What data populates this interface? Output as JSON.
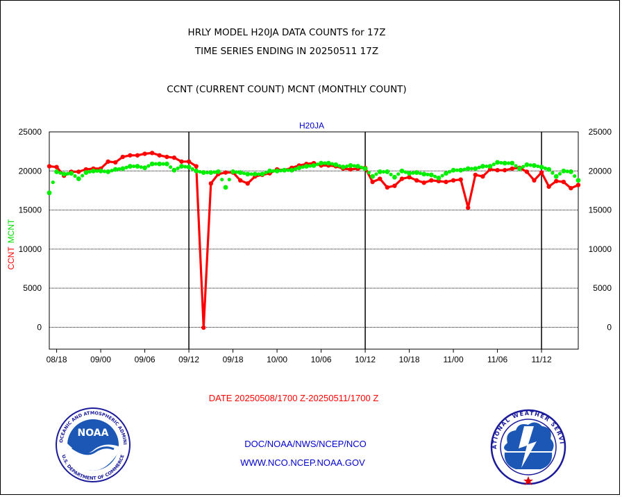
{
  "header": {
    "title_line1": "HRLY MODEL H20JA DATA COUNTS for 17Z",
    "title_line2": "TIME SERIES ENDING IN 20250511 17Z",
    "subtitle": "CCNT (CURRENT COUNT) MCNT (MONTHLY COUNT)"
  },
  "footer": {
    "date_range": "DATE 20250508/1700 Z-20250511/1700 Z",
    "link1": "DOC/NOAA/NWS/NCEP/NCO",
    "link2": "WWW.NCO.NCEP.NOAA.GOV"
  },
  "logos": {
    "noaa_text": "NOAA",
    "noaa_ring": "NATIONAL OCEANIC AND ATMOSPHERIC ADMINISTRATION",
    "noaa_ring_bottom": "U.S. DEPARTMENT OF COMMERCE",
    "nws_ring": "NATIONAL WEATHER SERVICE"
  },
  "colors": {
    "ccnt": "#ff0000",
    "mcnt": "#00ee00",
    "axis": "#000000",
    "link": "#0000cc",
    "panel_label": "#0000cc"
  },
  "chart_data": {
    "type": "line",
    "title": "H20JA",
    "ylabel_left_parts": [
      "CCNT",
      "MCNT"
    ],
    "ylim": [
      -2800,
      25000
    ],
    "yticks": [
      0,
      5000,
      10000,
      15000,
      20000,
      25000
    ],
    "xlim": [
      0,
      72
    ],
    "xtick_labels": [
      "08/18",
      "09/00",
      "09/06",
      "09/12",
      "09/18",
      "10/00",
      "10/06",
      "10/12",
      "10/18",
      "11/00",
      "11/06",
      "11/12"
    ],
    "xtick_positions": [
      1,
      7,
      13,
      19,
      25,
      31,
      37,
      43,
      49,
      55,
      61,
      67
    ],
    "day_boundaries": [
      19,
      43,
      67
    ],
    "grid": "horizontal dotted",
    "series": [
      {
        "name": "CCNT",
        "color": "#ff0000",
        "x": [
          0,
          1,
          2,
          3,
          4,
          5,
          6,
          7,
          8,
          9,
          10,
          11,
          12,
          13,
          14,
          15,
          16,
          17,
          18,
          19,
          20,
          21,
          22,
          23,
          24,
          25,
          26,
          27,
          28,
          29,
          30,
          31,
          32,
          33,
          34,
          35,
          36,
          37,
          38,
          39,
          40,
          41,
          42,
          43,
          44,
          45,
          46,
          47,
          48,
          49,
          50,
          51,
          52,
          53,
          54,
          55,
          56,
          57,
          58,
          59,
          60,
          61,
          62,
          63,
          64,
          65,
          66,
          67,
          68,
          69,
          70,
          71,
          72
        ],
        "values": [
          20600,
          20500,
          19400,
          19900,
          19900,
          20200,
          20300,
          20300,
          21200,
          21100,
          21800,
          22000,
          22000,
          22200,
          22300,
          22000,
          21800,
          21700,
          21200,
          21200,
          20600,
          -50,
          18400,
          19600,
          19800,
          19800,
          18800,
          18400,
          19300,
          19500,
          19700,
          20200,
          20100,
          20400,
          20700,
          20900,
          21000,
          20700,
          20700,
          20600,
          20300,
          20200,
          20300,
          20400,
          18600,
          19000,
          17900,
          18100,
          19000,
          19200,
          18800,
          18500,
          18800,
          18700,
          18600,
          18800,
          18900,
          15300,
          19500,
          19300,
          20200,
          20100,
          20100,
          20300,
          20400,
          19900,
          18800,
          19800,
          18000,
          18700,
          18600,
          17800,
          18200
        ]
      },
      {
        "name": "MCNT",
        "color": "#00ee00",
        "x": [
          0,
          1,
          2,
          3,
          4,
          5,
          6,
          7,
          8,
          9,
          10,
          11,
          12,
          13,
          14,
          15,
          16,
          17,
          18,
          19,
          20,
          21,
          22,
          23,
          24,
          25,
          26,
          27,
          28,
          29,
          30,
          31,
          32,
          33,
          34,
          35,
          36,
          37,
          38,
          39,
          40,
          41,
          42,
          43,
          44,
          45,
          46,
          47,
          48,
          49,
          50,
          51,
          52,
          53,
          54,
          55,
          56,
          57,
          58,
          59,
          60,
          61,
          62,
          63,
          64,
          65,
          66,
          67,
          68,
          69,
          70,
          71,
          72
        ],
        "values": [
          17200,
          19900,
          19600,
          19700,
          19000,
          19800,
          20000,
          20000,
          19900,
          20200,
          20300,
          20600,
          20600,
          20400,
          20900,
          20900,
          20900,
          20100,
          20600,
          20500,
          20000,
          19800,
          19800,
          19900,
          17900,
          19900,
          19800,
          19600,
          19600,
          19600,
          20000,
          20000,
          20100,
          20100,
          20400,
          20600,
          20700,
          21000,
          21000,
          20800,
          20500,
          20700,
          20600,
          20300,
          19300,
          19900,
          19900,
          19200,
          20000,
          19700,
          19800,
          19600,
          19500,
          19100,
          19700,
          20100,
          20100,
          20300,
          20300,
          20600,
          20600,
          21100,
          21000,
          21000,
          20300,
          20800,
          20700,
          20500,
          20200,
          19300,
          20000,
          19900,
          18800
        ]
      }
    ]
  }
}
